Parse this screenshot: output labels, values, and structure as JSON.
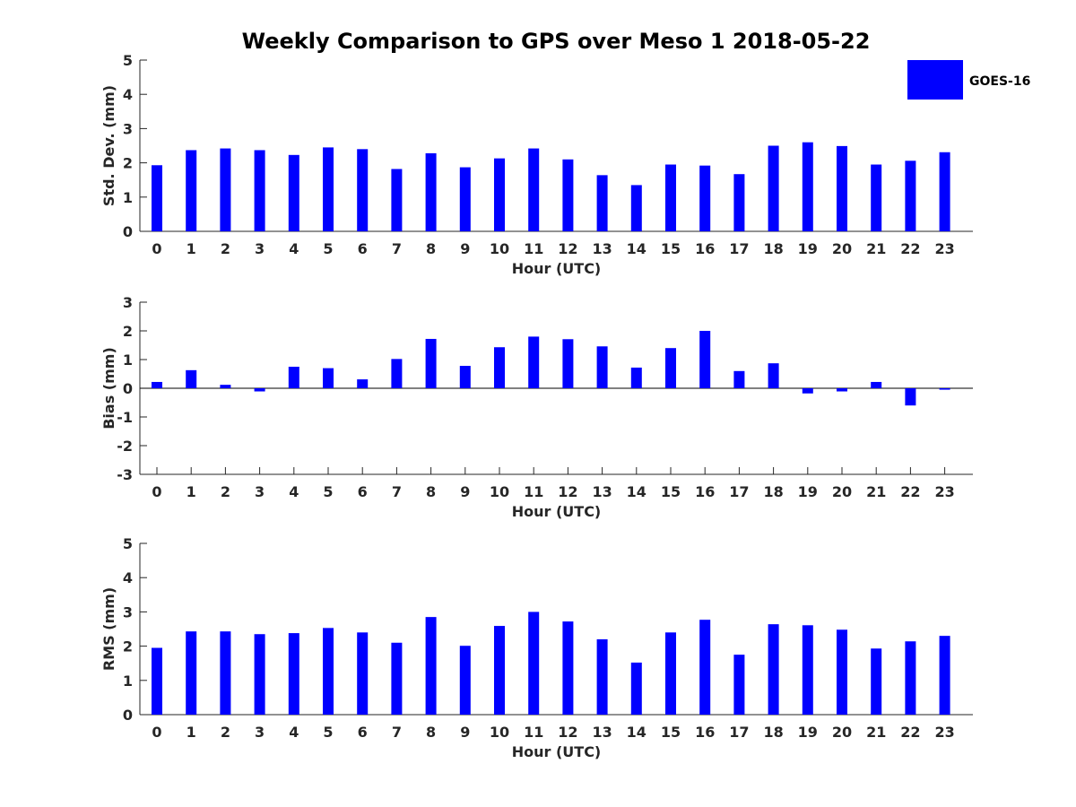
{
  "title": "Weekly Comparison to GPS over Meso 1 2018-05-22",
  "colors": {
    "bar": "#0000ff",
    "axis": "#262626"
  },
  "legend": {
    "label": "GOES-16",
    "placement": "top-right"
  },
  "chart_data": [
    {
      "type": "bar",
      "name": "std-dev",
      "categories": [
        "0",
        "1",
        "2",
        "3",
        "4",
        "5",
        "6",
        "7",
        "8",
        "9",
        "10",
        "11",
        "12",
        "13",
        "14",
        "15",
        "16",
        "17",
        "18",
        "19",
        "20",
        "21",
        "22",
        "23"
      ],
      "series": [
        {
          "name": "GOES-16",
          "values": [
            1.93,
            2.37,
            2.42,
            2.37,
            2.23,
            2.45,
            2.4,
            1.82,
            2.28,
            1.87,
            2.13,
            2.42,
            2.1,
            1.64,
            1.35,
            1.95,
            1.92,
            1.67,
            2.5,
            2.6,
            2.49,
            1.95,
            2.06,
            2.31
          ]
        }
      ],
      "xlabel": "Hour (UTC)",
      "ylabel": "Std. Dev. (mm)",
      "ylim": [
        0,
        5
      ],
      "yticks": [
        "0",
        "1",
        "2",
        "3",
        "4",
        "5"
      ]
    },
    {
      "type": "bar",
      "name": "bias",
      "categories": [
        "0",
        "1",
        "2",
        "3",
        "4",
        "5",
        "6",
        "7",
        "8",
        "9",
        "10",
        "11",
        "12",
        "13",
        "14",
        "15",
        "16",
        "17",
        "18",
        "19",
        "20",
        "21",
        "22",
        "23"
      ],
      "series": [
        {
          "name": "GOES-16",
          "values": [
            0.22,
            0.63,
            0.12,
            -0.11,
            0.75,
            0.7,
            0.31,
            1.02,
            1.72,
            0.78,
            1.43,
            1.8,
            1.71,
            1.46,
            0.72,
            1.4,
            2.0,
            0.6,
            0.87,
            -0.18,
            -0.11,
            0.22,
            -0.6,
            -0.05
          ]
        }
      ],
      "xlabel": "Hour (UTC)",
      "ylabel": "Bias (mm)",
      "ylim": [
        -3,
        3
      ],
      "yticks": [
        "-3",
        "-2",
        "-1",
        "0",
        "1",
        "2",
        "3"
      ]
    },
    {
      "type": "bar",
      "name": "rms",
      "categories": [
        "0",
        "1",
        "2",
        "3",
        "4",
        "5",
        "6",
        "7",
        "8",
        "9",
        "10",
        "11",
        "12",
        "13",
        "14",
        "15",
        "16",
        "17",
        "18",
        "19",
        "20",
        "21",
        "22",
        "23"
      ],
      "series": [
        {
          "name": "GOES-16",
          "values": [
            1.95,
            2.43,
            2.43,
            2.35,
            2.38,
            2.53,
            2.4,
            2.1,
            2.85,
            2.01,
            2.59,
            3.0,
            2.72,
            2.2,
            1.52,
            2.4,
            2.77,
            1.75,
            2.64,
            2.61,
            2.48,
            1.93,
            2.14,
            2.3
          ]
        }
      ],
      "xlabel": "Hour (UTC)",
      "ylabel": "RMS (mm)",
      "ylim": [
        0,
        5
      ],
      "yticks": [
        "0",
        "1",
        "2",
        "3",
        "4",
        "5"
      ]
    }
  ]
}
